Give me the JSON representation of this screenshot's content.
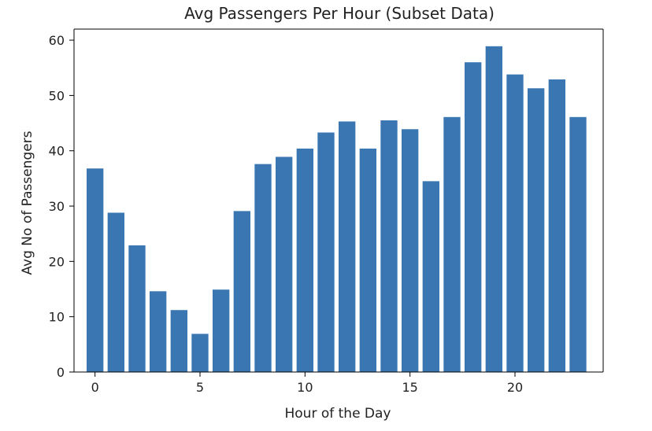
{
  "chart_data": {
    "type": "bar",
    "title": "Avg Passengers Per Hour (Subset Data)",
    "xlabel": "Hour of the Day",
    "ylabel": "Avg No of Passengers",
    "categories": [
      0,
      1,
      2,
      3,
      4,
      5,
      6,
      7,
      8,
      9,
      10,
      11,
      12,
      13,
      14,
      15,
      16,
      17,
      18,
      19,
      20,
      21,
      22,
      23
    ],
    "values": [
      36.8,
      28.8,
      22.9,
      14.6,
      11.2,
      6.9,
      14.9,
      29.1,
      37.6,
      38.9,
      40.4,
      43.3,
      45.3,
      40.4,
      45.5,
      43.9,
      34.5,
      46.1,
      56.0,
      58.9,
      53.8,
      51.3,
      52.9,
      46.1
    ],
    "xlim": [
      -1.0,
      24.2
    ],
    "ylim": [
      0,
      62
    ],
    "xticks": [
      0,
      5,
      10,
      15,
      20
    ],
    "xtick_labels": [
      "0",
      "5",
      "10",
      "15",
      "20"
    ],
    "yticks": [
      0,
      10,
      20,
      30,
      40,
      50,
      60
    ],
    "ytick_labels": [
      "0",
      "10",
      "20",
      "30",
      "40",
      "50",
      "60"
    ],
    "grid": false,
    "bar_color": "#3a76b1"
  }
}
